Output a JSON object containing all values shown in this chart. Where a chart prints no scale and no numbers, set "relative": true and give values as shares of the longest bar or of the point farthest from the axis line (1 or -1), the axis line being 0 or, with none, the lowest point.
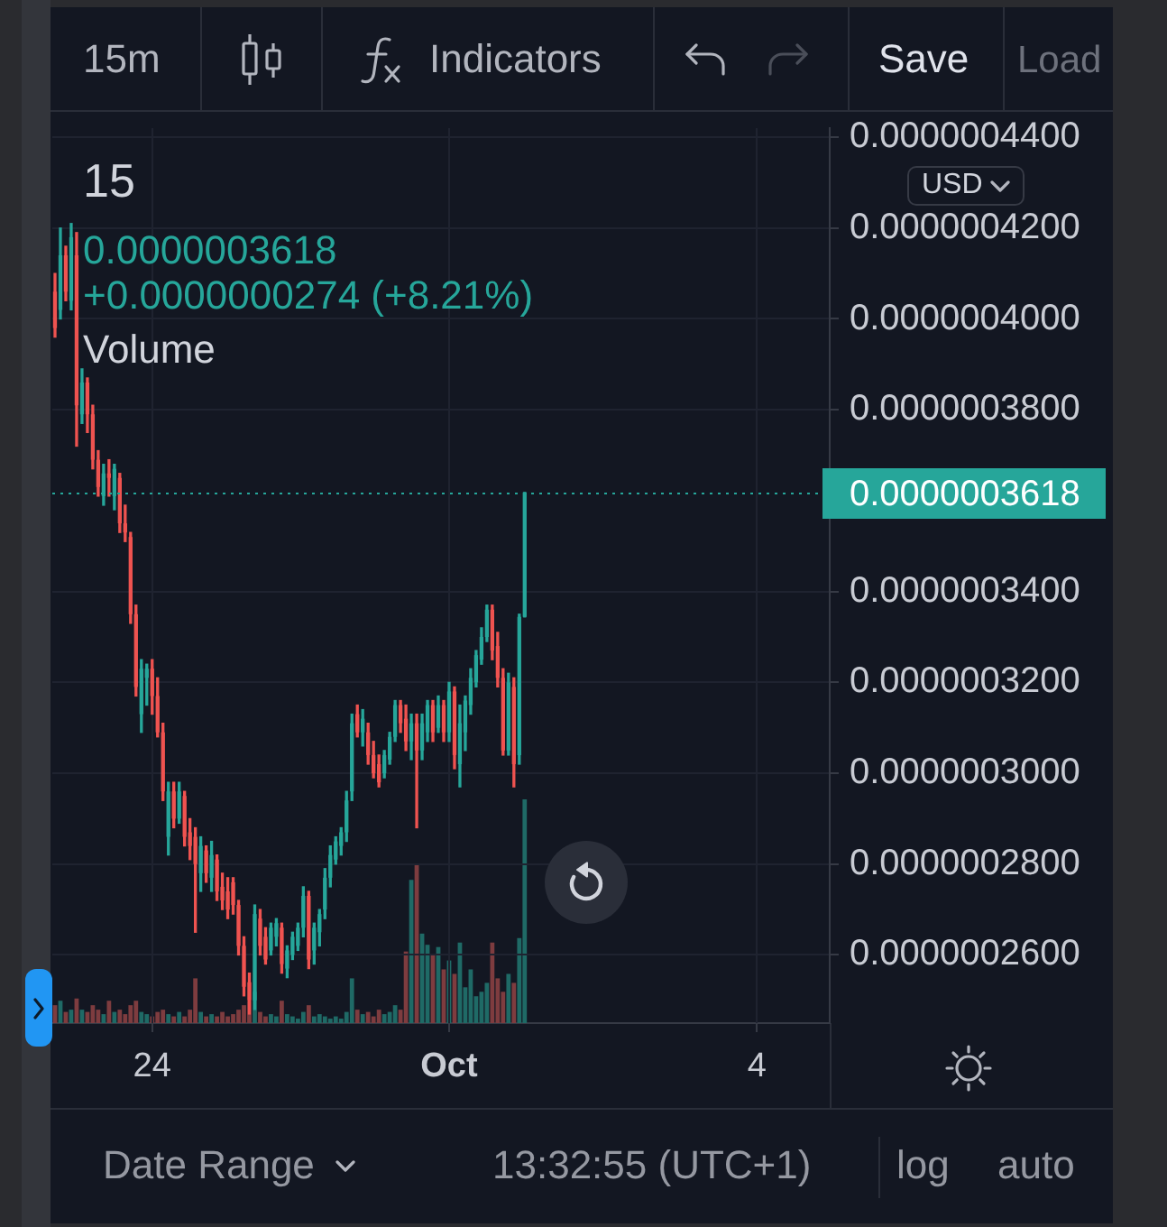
{
  "chart_data": [
    {
      "type": "candlestick",
      "title": "15",
      "annotations": [
        "0.0000003618",
        "+0.0000000274 (+8.21%)",
        "15m",
        "Indicators",
        "Save",
        "Load",
        "USD",
        "Date Range",
        "13:32:55 (UTC+1)",
        "log",
        "auto"
      ],
      "categories": [
        null,
        null,
        null,
        null,
        null,
        null,
        null,
        null,
        null,
        null,
        null,
        null,
        null,
        null,
        null,
        null,
        null,
        null,
        "24",
        null,
        null,
        null,
        null,
        null,
        null,
        null,
        null,
        null,
        null,
        null,
        null,
        null,
        null,
        null,
        null,
        null,
        null,
        null,
        null,
        null,
        null,
        null,
        null,
        null,
        null,
        null,
        null,
        null,
        null,
        null,
        null,
        null,
        null,
        null,
        null,
        null,
        null,
        null,
        null,
        null,
        null,
        null,
        null,
        null,
        null,
        null,
        null,
        null,
        null,
        null,
        null,
        null,
        null,
        "Oct",
        null,
        null,
        null,
        null,
        null,
        null,
        null,
        null,
        null,
        null,
        null,
        null,
        null,
        null,
        null,
        null,
        null,
        null,
        null,
        null,
        null,
        null,
        null,
        null,
        null,
        null,
        null,
        null,
        null,
        null,
        null,
        null,
        null,
        null,
        null,
        null,
        null,
        null,
        null,
        null,
        null,
        null,
        null,
        null,
        null,
        null,
        null,
        null,
        null,
        null,
        null,
        null,
        null,
        null,
        null,
        null,
        "4",
        null,
        null,
        null,
        null,
        null,
        null,
        null,
        null,
        null,
        null,
        null,
        null,
        null
      ],
      "ohlc": [
        [
          4.06e-07,
          4.1e-07,
          3.96e-07,
          3.98e-07
        ],
        [
          4.02e-07,
          4.2e-07,
          4e-07,
          4.14e-07
        ],
        [
          4.14e-07,
          4.16e-07,
          4.04e-07,
          4.06e-07
        ],
        [
          4.04e-07,
          4.21e-07,
          4.02e-07,
          4.18e-07
        ],
        [
          4.14e-07,
          4.19e-07,
          3.72e-07,
          3.81e-07
        ],
        [
          3.79e-07,
          3.89e-07,
          3.77e-07,
          3.86e-07
        ],
        [
          3.86e-07,
          3.87e-07,
          3.75e-07,
          3.79e-07
        ],
        [
          3.79e-07,
          3.81e-07,
          3.67e-07,
          3.69e-07
        ],
        [
          3.69e-07,
          3.71e-07,
          3.61e-07,
          3.63e-07
        ],
        [
          3.61e-07,
          3.68e-07,
          3.59e-07,
          3.66e-07
        ],
        [
          3.66e-07,
          3.69e-07,
          3.61e-07,
          3.65e-07
        ],
        [
          3.61e-07,
          3.68e-07,
          3.58e-07,
          3.67e-07
        ],
        [
          3.65e-07,
          3.66e-07,
          3.53e-07,
          3.55e-07
        ],
        [
          3.55e-07,
          3.59e-07,
          3.51e-07,
          3.53e-07
        ],
        [
          3.52e-07,
          3.53e-07,
          3.33e-07,
          3.35e-07
        ],
        [
          3.35e-07,
          3.37e-07,
          3.17e-07,
          3.19e-07
        ],
        [
          3.13e-07,
          3.25e-07,
          3.09e-07,
          3.23e-07
        ],
        [
          3.21e-07,
          3.24e-07,
          3.15e-07,
          3.23e-07
        ],
        [
          3.23e-07,
          3.25e-07,
          3.13e-07,
          3.17e-07
        ],
        [
          3.17e-07,
          3.21e-07,
          3.08e-07,
          3.09e-07
        ],
        [
          3.09e-07,
          3.11e-07,
          2.94e-07,
          2.96e-07
        ],
        [
          2.86e-07,
          2.98e-07,
          2.82e-07,
          2.96e-07
        ],
        [
          2.96e-07,
          2.98e-07,
          2.88e-07,
          2.9e-07
        ],
        [
          2.9e-07,
          2.98e-07,
          2.89e-07,
          2.96e-07
        ],
        [
          2.95e-07,
          2.96e-07,
          2.84e-07,
          2.86e-07
        ],
        [
          2.87e-07,
          2.9e-07,
          2.81e-07,
          2.84e-07
        ],
        [
          2.86e-07,
          2.88e-07,
          2.65e-07,
          2.8e-07
        ],
        [
          2.78e-07,
          2.86e-07,
          2.74e-07,
          2.84e-07
        ],
        [
          2.83e-07,
          2.84e-07,
          2.76e-07,
          2.78e-07
        ],
        [
          2.77e-07,
          2.85e-07,
          2.74e-07,
          2.82e-07
        ],
        [
          2.81e-07,
          2.82e-07,
          2.72e-07,
          2.74e-07
        ],
        [
          2.75e-07,
          2.78e-07,
          2.7e-07,
          2.72e-07
        ],
        [
          2.74e-07,
          2.77e-07,
          2.68e-07,
          2.7e-07
        ],
        [
          2.76e-07,
          2.77e-07,
          2.69e-07,
          2.71e-07
        ],
        [
          2.71e-07,
          2.72e-07,
          2.6e-07,
          2.62e-07
        ],
        [
          2.62e-07,
          2.64e-07,
          2.51e-07,
          2.53e-07
        ],
        [
          2.54e-07,
          2.56e-07,
          2.47e-07,
          2.5e-07
        ],
        [
          2.5e-07,
          2.71e-07,
          2.48e-07,
          2.69e-07
        ],
        [
          2.68e-07,
          2.7e-07,
          2.6e-07,
          2.62e-07
        ],
        [
          2.64e-07,
          2.66e-07,
          2.58e-07,
          2.59e-07
        ],
        [
          2.61e-07,
          2.67e-07,
          2.6e-07,
          2.66e-07
        ],
        [
          2.64e-07,
          2.68e-07,
          2.62e-07,
          2.67e-07
        ],
        [
          2.66e-07,
          2.67e-07,
          2.56e-07,
          2.58e-07
        ],
        [
          2.57e-07,
          2.62e-07,
          2.55e-07,
          2.61e-07
        ],
        [
          2.6e-07,
          2.65e-07,
          2.59e-07,
          2.64e-07
        ],
        [
          2.62e-07,
          2.67e-07,
          2.61e-07,
          2.66e-07
        ],
        [
          2.66e-07,
          2.75e-07,
          2.64e-07,
          2.73e-07
        ],
        [
          2.73e-07,
          2.74e-07,
          2.57e-07,
          2.59e-07
        ],
        [
          2.61e-07,
          2.67e-07,
          2.58e-07,
          2.66e-07
        ],
        [
          2.65e-07,
          2.7e-07,
          2.62e-07,
          2.69e-07
        ],
        [
          2.7e-07,
          2.79e-07,
          2.68e-07,
          2.77e-07
        ],
        [
          2.77e-07,
          2.84e-07,
          2.75e-07,
          2.82e-07
        ],
        [
          2.81e-07,
          2.86e-07,
          2.8e-07,
          2.85e-07
        ],
        [
          2.84e-07,
          2.88e-07,
          2.82e-07,
          2.87e-07
        ],
        [
          2.87e-07,
          2.96e-07,
          2.85e-07,
          2.94e-07
        ],
        [
          2.96e-07,
          3.13e-07,
          2.94e-07,
          3.11e-07
        ],
        [
          3.13e-07,
          3.15e-07,
          3.08e-07,
          3.09e-07
        ],
        [
          3.09e-07,
          3.14e-07,
          3.06e-07,
          3.12e-07
        ],
        [
          3.09e-07,
          3.11e-07,
          3.02e-07,
          3.04e-07
        ],
        [
          3.04e-07,
          3.07e-07,
          2.99e-07,
          3e-07
        ],
        [
          3.02e-07,
          3.04e-07,
          2.97e-07,
          2.98e-07
        ],
        [
          3e-07,
          3.05e-07,
          2.99e-07,
          3.04e-07
        ],
        [
          3.03e-07,
          3.09e-07,
          3.02e-07,
          3.08e-07
        ],
        [
          3.08e-07,
          3.16e-07,
          3.07e-07,
          3.15e-07
        ],
        [
          3.15e-07,
          3.16e-07,
          3.09e-07,
          3.11e-07
        ],
        [
          3.12e-07,
          3.15e-07,
          3.05e-07,
          3.07e-07
        ],
        [
          3.07e-07,
          3.13e-07,
          3.03e-07,
          3.11e-07
        ],
        [
          3.11e-07,
          3.13e-07,
          2.88e-07,
          3.05e-07
        ],
        [
          3.05e-07,
          3.13e-07,
          3.03e-07,
          3.11e-07
        ],
        [
          3.09e-07,
          3.16e-07,
          3.07e-07,
          3.15e-07
        ],
        [
          3.15e-07,
          3.16e-07,
          3.07e-07,
          3.09e-07
        ],
        [
          3.1e-07,
          3.17e-07,
          3.09e-07,
          3.15e-07
        ],
        [
          3.15e-07,
          3.16e-07,
          3.07e-07,
          3.09e-07
        ],
        [
          3.09e-07,
          3.2e-07,
          3.07e-07,
          3.18e-07
        ],
        [
          3.18e-07,
          3.19e-07,
          3.01e-07,
          3.04e-07
        ],
        [
          3.02e-07,
          3.15e-07,
          2.97e-07,
          3.11e-07
        ],
        [
          3.09e-07,
          3.17e-07,
          3.05e-07,
          3.16e-07
        ],
        [
          3.15e-07,
          3.23e-07,
          3.13e-07,
          3.21e-07
        ],
        [
          3.2e-07,
          3.27e-07,
          3.19e-07,
          3.26e-07
        ],
        [
          3.25e-07,
          3.32e-07,
          3.24e-07,
          3.3e-07
        ],
        [
          3.3e-07,
          3.37e-07,
          3.29e-07,
          3.36e-07
        ],
        [
          3.36e-07,
          3.37e-07,
          3.25e-07,
          3.27e-07
        ],
        [
          3.28e-07,
          3.31e-07,
          3.19e-07,
          3.21e-07
        ],
        [
          3.21e-07,
          3.23e-07,
          3.04e-07,
          3.05e-07
        ],
        [
          3.05e-07,
          3.22e-07,
          3.04e-07,
          3.2e-07
        ],
        [
          3.19e-07,
          3.21e-07,
          2.97e-07,
          3.02e-07
        ],
        [
          3.04e-07,
          3.35e-07,
          3.02e-07,
          3.344e-07
        ],
        [
          3.344e-07,
          3.618e-07,
          3.344e-07,
          3.618e-07
        ],
        null,
        null,
        null,
        null,
        null,
        null,
        null,
        null,
        null,
        null,
        null,
        null,
        null,
        null,
        null,
        null,
        null,
        null,
        null,
        null,
        null,
        null,
        null,
        null,
        null,
        null,
        null,
        null,
        null,
        null,
        null,
        null,
        null,
        null,
        null,
        null,
        null,
        null,
        null,
        null,
        null,
        null,
        null,
        null,
        null,
        null,
        null,
        null,
        null,
        null,
        null,
        null,
        null,
        null,
        null,
        null
      ],
      "colors": [
        "#ef5350",
        "#26a69a",
        "#ef5350",
        "#26a69a",
        "#ef5350",
        "#26a69a",
        "#ef5350",
        "#ef5350",
        "#ef5350",
        "#26a69a",
        "#ef5350",
        "#26a69a",
        "#ef5350",
        "#ef5350",
        "#ef5350",
        "#ef5350",
        "#26a69a",
        "#26a69a",
        "#ef5350",
        "#ef5350",
        "#ef5350",
        "#26a69a",
        "#ef5350",
        "#26a69a",
        "#ef5350",
        "#ef5350",
        "#ef5350",
        "#26a69a",
        "#ef5350",
        "#26a69a",
        "#ef5350",
        "#ef5350",
        "#ef5350",
        "#ef5350",
        "#ef5350",
        "#ef5350",
        "#ef5350",
        "#26a69a",
        "#ef5350",
        "#ef5350",
        "#26a69a",
        "#26a69a",
        "#ef5350",
        "#26a69a",
        "#26a69a",
        "#26a69a",
        "#26a69a",
        "#ef5350",
        "#26a69a",
        "#26a69a",
        "#26a69a",
        "#26a69a",
        "#26a69a",
        "#26a69a",
        "#26a69a",
        "#26a69a",
        "#ef5350",
        "#26a69a",
        "#ef5350",
        "#ef5350",
        "#ef5350",
        "#26a69a",
        "#26a69a",
        "#26a69a",
        "#ef5350",
        "#ef5350",
        "#26a69a",
        "#ef5350",
        "#26a69a",
        "#26a69a",
        "#ef5350",
        "#26a69a",
        "#ef5350",
        "#26a69a",
        "#ef5350",
        "#26a69a",
        "#26a69a",
        "#26a69a",
        "#26a69a",
        "#26a69a",
        "#26a69a",
        "#ef5350",
        "#ef5350",
        "#ef5350",
        "#26a69a",
        "#ef5350",
        "#26a69a",
        "#26a69a",
        null,
        null,
        null,
        null,
        null,
        null,
        null,
        null,
        null,
        null,
        null,
        null,
        null,
        null,
        null,
        null,
        null,
        null,
        null,
        null,
        null,
        null,
        null,
        null,
        null,
        null,
        null,
        null,
        null,
        null,
        null,
        null,
        null,
        null,
        null,
        null,
        null,
        null,
        null,
        null,
        null,
        null,
        null,
        null,
        null,
        null,
        null,
        null,
        null,
        null,
        null,
        null,
        null,
        null,
        null,
        null
      ],
      "ylim": [
        2.45e-07,
        4.42e-07
      ],
      "yticks": [
        {
          "value": 2.6e-07,
          "label": "0.0000002600"
        },
        {
          "value": 2.8e-07,
          "label": "0.0000002800"
        },
        {
          "value": 3e-07,
          "label": "0.0000003000"
        },
        {
          "value": 3.2e-07,
          "label": "0.0000003200"
        },
        {
          "value": 3.4e-07,
          "label": "0.0000003400"
        },
        {
          "value": 3.8e-07,
          "label": "0.0000003800"
        },
        {
          "value": 4e-07,
          "label": "0.0000004000"
        },
        {
          "value": 4.2e-07,
          "label": "0.0000004200"
        },
        {
          "value": 4.4e-07,
          "label": "0.0000004400"
        }
      ],
      "ref_lines": [
        {
          "axis": "y",
          "value": 3.618e-07,
          "label": "0.0000003618",
          "color": "#26a69a",
          "line_style": "dotted"
        }
      ],
      "grid": true
    },
    {
      "type": "bar",
      "title": "Volume",
      "relative": true,
      "categories": [
        null,
        null,
        null,
        null,
        null,
        null,
        null,
        null,
        null,
        null,
        null,
        null,
        null,
        null,
        null,
        null,
        null,
        null,
        null,
        null,
        null,
        null,
        null,
        null,
        null,
        null,
        null,
        null,
        null,
        null,
        null,
        null,
        null,
        null,
        null,
        null,
        null,
        null,
        null,
        null,
        null,
        null,
        null,
        null,
        null,
        null,
        null,
        null,
        null,
        null,
        null,
        null,
        null,
        null,
        null,
        null,
        null,
        null,
        null,
        null,
        null,
        null,
        null,
        null,
        null,
        null,
        null,
        null,
        null,
        null,
        null,
        null,
        null,
        null,
        null,
        null,
        null,
        null,
        null,
        null,
        null,
        null,
        null,
        null,
        null,
        null,
        null,
        null,
        null,
        null,
        null,
        null,
        null,
        null,
        null,
        null,
        null,
        null,
        null,
        null,
        null,
        null,
        null,
        null,
        null,
        null,
        null,
        null,
        null,
        null,
        null,
        null,
        null,
        null,
        null,
        null,
        null,
        null,
        null,
        null,
        null,
        null,
        null,
        null,
        null,
        null,
        null,
        null,
        null,
        null,
        null,
        null,
        null,
        null,
        null,
        null,
        null,
        null,
        null,
        null,
        null,
        null,
        null,
        null
      ],
      "values": [
        0.08,
        0.1,
        0.05,
        0.06,
        0.11,
        0.06,
        0.05,
        0.08,
        0.06,
        0.04,
        0.1,
        0.05,
        0.06,
        0.04,
        0.08,
        0.1,
        0.05,
        0.04,
        0.03,
        0.05,
        0.06,
        0.04,
        0.03,
        0.05,
        0.03,
        0.06,
        0.2,
        0.05,
        0.03,
        0.04,
        0.03,
        0.05,
        0.03,
        0.04,
        0.06,
        0.08,
        0.1,
        0.14,
        0.05,
        0.03,
        0.04,
        0.03,
        0.1,
        0.04,
        0.03,
        0.02,
        0.05,
        0.08,
        0.03,
        0.04,
        0.03,
        0.02,
        0.03,
        0.02,
        0.05,
        0.2,
        0.06,
        0.04,
        0.05,
        0.03,
        0.06,
        0.04,
        0.05,
        0.08,
        0.06,
        0.32,
        0.64,
        0.71,
        0.4,
        0.35,
        0.31,
        0.34,
        0.24,
        0.28,
        0.22,
        0.36,
        0.16,
        0.24,
        0.12,
        0.14,
        0.18,
        0.36,
        0.2,
        0.14,
        0.22,
        0.18,
        0.38,
        1,
        null,
        null,
        null,
        null,
        null,
        null,
        null,
        null,
        null,
        null,
        null,
        null,
        null,
        null,
        null,
        null,
        null,
        null,
        null,
        null,
        null,
        null,
        null,
        null,
        null,
        null,
        null,
        null,
        null,
        null,
        null,
        null,
        null,
        null,
        null,
        null,
        null,
        null,
        null,
        null,
        null,
        null,
        null,
        null,
        null,
        null,
        null,
        null,
        null,
        null,
        null,
        null,
        null,
        null,
        null,
        null
      ],
      "colors": [
        "#7e3c3f",
        "#1f6a66",
        "#7e3c3f",
        "#1f6a66",
        "#7e3c3f",
        "#1f6a66",
        "#7e3c3f",
        "#7e3c3f",
        "#7e3c3f",
        "#1f6a66",
        "#7e3c3f",
        "#1f6a66",
        "#7e3c3f",
        "#7e3c3f",
        "#7e3c3f",
        "#7e3c3f",
        "#1f6a66",
        "#1f6a66",
        "#7e3c3f",
        "#7e3c3f",
        "#7e3c3f",
        "#1f6a66",
        "#7e3c3f",
        "#1f6a66",
        "#7e3c3f",
        "#7e3c3f",
        "#7e3c3f",
        "#1f6a66",
        "#7e3c3f",
        "#1f6a66",
        "#7e3c3f",
        "#7e3c3f",
        "#7e3c3f",
        "#7e3c3f",
        "#7e3c3f",
        "#7e3c3f",
        "#7e3c3f",
        "#1f6a66",
        "#7e3c3f",
        "#7e3c3f",
        "#1f6a66",
        "#1f6a66",
        "#7e3c3f",
        "#1f6a66",
        "#1f6a66",
        "#1f6a66",
        "#1f6a66",
        "#7e3c3f",
        "#1f6a66",
        "#1f6a66",
        "#1f6a66",
        "#1f6a66",
        "#1f6a66",
        "#1f6a66",
        "#1f6a66",
        "#1f6a66",
        "#7e3c3f",
        "#1f6a66",
        "#7e3c3f",
        "#7e3c3f",
        "#7e3c3f",
        "#1f6a66",
        "#1f6a66",
        "#1f6a66",
        "#7e3c3f",
        "#7e3c3f",
        "#1f6a66",
        "#7e3c3f",
        "#1f6a66",
        "#1f6a66",
        "#7e3c3f",
        "#1f6a66",
        "#7e3c3f",
        "#1f6a66",
        "#7e3c3f",
        "#1f6a66",
        "#1f6a66",
        "#1f6a66",
        "#1f6a66",
        "#1f6a66",
        "#1f6a66",
        "#7e3c3f",
        "#7e3c3f",
        "#7e3c3f",
        "#1f6a66",
        "#7e3c3f",
        "#1f6a66",
        "#1f6a66",
        null,
        null,
        null,
        null,
        null,
        null,
        null,
        null,
        null,
        null,
        null,
        null,
        null,
        null,
        null,
        null,
        null,
        null,
        null,
        null,
        null,
        null,
        null,
        null,
        null,
        null,
        null,
        null,
        null,
        null,
        null,
        null,
        null,
        null,
        null,
        null,
        null,
        null,
        null,
        null,
        null,
        null,
        null,
        null,
        null,
        null,
        null,
        null,
        null,
        null,
        null,
        null,
        null,
        null,
        null,
        null
      ]
    }
  ]
}
